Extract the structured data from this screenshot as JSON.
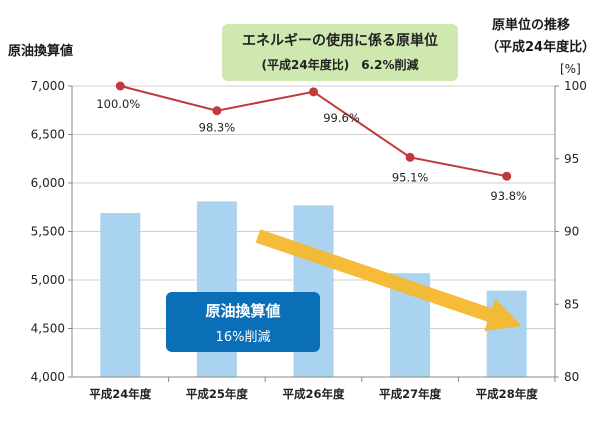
{
  "left_axis_title": "原油換算値",
  "right_axis_title_line1": "原単位の推移",
  "right_axis_title_line2": "（平成24年度比）",
  "right_axis_unit": "[%]",
  "callout_green": {
    "line1": "エネルギーの使用に係る原単位",
    "line2_a": "(平成24年度比)",
    "line2_b": "6.2%削減",
    "color": "#cfe8b0"
  },
  "callout_blue": {
    "line1": "原油換算値",
    "line2": "16%削減",
    "color": "#0a6fb6"
  },
  "chart_data": {
    "type": "bar",
    "categories": [
      "平成24年度",
      "平成25年度",
      "平成26年度",
      "平成27年度",
      "平成28年度"
    ],
    "series": [
      {
        "type": "bar",
        "axis": "left",
        "values": [
          5690,
          5810,
          5770,
          5070,
          4890
        ],
        "color": "#a9d3ee"
      },
      {
        "type": "line",
        "axis": "right",
        "values": [
          100.0,
          98.3,
          99.6,
          95.1,
          93.8
        ],
        "data_labels": [
          "100.0%",
          "98.3%",
          "99.6%",
          "95.1%",
          "93.8%"
        ],
        "color": "#c0393b"
      }
    ],
    "y_left": {
      "min": 4000,
      "max": 7000,
      "ticks": [
        4000,
        4500,
        5000,
        5500,
        6000,
        6500,
        7000
      ],
      "tick_labels": [
        "4,000",
        "4,500",
        "5,000",
        "5,500",
        "6,000",
        "6,500",
        "7,000"
      ]
    },
    "y_right": {
      "min": 80,
      "max": 100,
      "ticks": [
        80,
        85,
        90,
        95,
        100
      ],
      "tick_labels": [
        "80",
        "85",
        "90",
        "95",
        "100"
      ]
    },
    "grid": true,
    "trend_arrow_color": "#f6b82e"
  }
}
